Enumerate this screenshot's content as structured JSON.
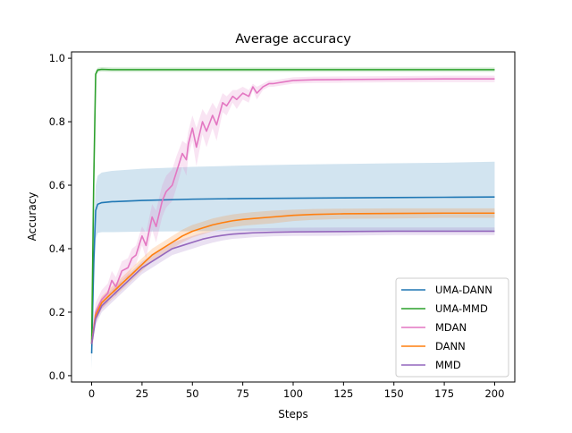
{
  "chart_data": {
    "type": "line",
    "title": "Average accuracy",
    "xlabel": "Steps",
    "ylabel": "Accuracy",
    "xlim": [
      -10,
      210
    ],
    "ylim": [
      -0.02,
      1.02
    ],
    "xticks": [
      0,
      25,
      50,
      75,
      100,
      125,
      150,
      175,
      200
    ],
    "yticks": [
      0.0,
      0.2,
      0.4,
      0.6,
      0.8,
      1.0
    ],
    "xtick_labels": [
      "0",
      "25",
      "50",
      "75",
      "100",
      "125",
      "150",
      "175",
      "200"
    ],
    "ytick_labels": [
      "0.0",
      "0.2",
      "0.4",
      "0.6",
      "0.8",
      "1.0"
    ],
    "grid": false,
    "legend_position": "bottom-right",
    "legend": [
      "UMA-DANN",
      "UMA-MMD",
      "MDAN",
      "DANN",
      "MMD"
    ],
    "series": [
      {
        "name": "UMA-DANN",
        "color": "#1f77b4",
        "x": [
          0,
          1,
          2,
          3,
          5,
          10,
          25,
          50,
          75,
          100,
          125,
          150,
          175,
          200
        ],
        "y": [
          0.07,
          0.35,
          0.52,
          0.54,
          0.545,
          0.548,
          0.552,
          0.556,
          0.558,
          0.559,
          0.56,
          0.561,
          0.562,
          0.563
        ],
        "upper": [
          0.12,
          0.45,
          0.6,
          0.63,
          0.64,
          0.645,
          0.652,
          0.658,
          0.662,
          0.665,
          0.667,
          0.669,
          0.671,
          0.674
        ],
        "lower": [
          0.02,
          0.25,
          0.43,
          0.45,
          0.452,
          0.452,
          0.454,
          0.455,
          0.456,
          0.456,
          0.455,
          0.455,
          0.455,
          0.453
        ]
      },
      {
        "name": "UMA-MMD",
        "color": "#2ca02c",
        "x": [
          0,
          1,
          2,
          3,
          5,
          10,
          50,
          100,
          150,
          200
        ],
        "y": [
          0.1,
          0.6,
          0.95,
          0.963,
          0.965,
          0.964,
          0.964,
          0.964,
          0.964,
          0.964
        ],
        "upper": [
          0.12,
          0.62,
          0.96,
          0.97,
          0.972,
          0.971,
          0.971,
          0.971,
          0.971,
          0.971
        ],
        "lower": [
          0.08,
          0.58,
          0.94,
          0.956,
          0.958,
          0.957,
          0.957,
          0.957,
          0.957,
          0.957
        ]
      },
      {
        "name": "MDAN",
        "color": "#e377c2",
        "x": [
          0,
          2,
          5,
          8,
          10,
          12,
          15,
          18,
          20,
          22,
          25,
          27,
          30,
          32,
          35,
          37,
          40,
          42,
          45,
          47,
          48,
          50,
          52,
          55,
          57,
          60,
          62,
          65,
          67,
          70,
          72,
          75,
          78,
          80,
          82,
          85,
          88,
          90,
          95,
          100,
          110,
          125,
          150,
          175,
          200
        ],
        "y": [
          0.1,
          0.2,
          0.24,
          0.26,
          0.3,
          0.28,
          0.33,
          0.34,
          0.37,
          0.38,
          0.44,
          0.41,
          0.5,
          0.47,
          0.55,
          0.58,
          0.6,
          0.64,
          0.7,
          0.68,
          0.73,
          0.78,
          0.72,
          0.8,
          0.77,
          0.82,
          0.79,
          0.86,
          0.85,
          0.88,
          0.87,
          0.89,
          0.88,
          0.91,
          0.89,
          0.91,
          0.92,
          0.92,
          0.925,
          0.93,
          0.932,
          0.933,
          0.934,
          0.935,
          0.935
        ],
        "upper": [
          0.13,
          0.23,
          0.27,
          0.29,
          0.33,
          0.31,
          0.36,
          0.37,
          0.4,
          0.41,
          0.47,
          0.45,
          0.54,
          0.52,
          0.6,
          0.63,
          0.65,
          0.69,
          0.74,
          0.73,
          0.77,
          0.82,
          0.78,
          0.84,
          0.82,
          0.86,
          0.84,
          0.89,
          0.88,
          0.9,
          0.9,
          0.91,
          0.9,
          0.92,
          0.91,
          0.92,
          0.93,
          0.93,
          0.935,
          0.94,
          0.942,
          0.943,
          0.944,
          0.945,
          0.945
        ],
        "lower": [
          0.07,
          0.17,
          0.21,
          0.23,
          0.27,
          0.25,
          0.3,
          0.31,
          0.34,
          0.35,
          0.41,
          0.37,
          0.46,
          0.42,
          0.5,
          0.53,
          0.55,
          0.59,
          0.66,
          0.63,
          0.69,
          0.74,
          0.66,
          0.76,
          0.72,
          0.78,
          0.74,
          0.83,
          0.82,
          0.86,
          0.84,
          0.87,
          0.86,
          0.9,
          0.87,
          0.9,
          0.91,
          0.91,
          0.915,
          0.92,
          0.922,
          0.923,
          0.924,
          0.925,
          0.925
        ]
      },
      {
        "name": "DANN",
        "color": "#ff7f0e",
        "x": [
          0,
          2,
          5,
          10,
          15,
          20,
          25,
          30,
          35,
          40,
          45,
          50,
          55,
          60,
          65,
          70,
          75,
          80,
          90,
          100,
          110,
          125,
          150,
          175,
          200
        ],
        "y": [
          0.1,
          0.19,
          0.23,
          0.26,
          0.29,
          0.32,
          0.35,
          0.38,
          0.4,
          0.42,
          0.44,
          0.455,
          0.465,
          0.475,
          0.482,
          0.488,
          0.492,
          0.495,
          0.5,
          0.505,
          0.508,
          0.51,
          0.511,
          0.512,
          0.512
        ],
        "upper": [
          0.12,
          0.21,
          0.25,
          0.28,
          0.31,
          0.34,
          0.37,
          0.4,
          0.42,
          0.44,
          0.46,
          0.475,
          0.485,
          0.495,
          0.502,
          0.508,
          0.512,
          0.515,
          0.52,
          0.523,
          0.525,
          0.526,
          0.527,
          0.527,
          0.527
        ],
        "lower": [
          0.08,
          0.17,
          0.21,
          0.24,
          0.27,
          0.3,
          0.33,
          0.36,
          0.38,
          0.4,
          0.42,
          0.435,
          0.445,
          0.455,
          0.462,
          0.468,
          0.472,
          0.475,
          0.48,
          0.487,
          0.491,
          0.494,
          0.495,
          0.497,
          0.497
        ]
      },
      {
        "name": "MMD",
        "color": "#9467bd",
        "x": [
          0,
          2,
          5,
          10,
          15,
          20,
          25,
          30,
          35,
          40,
          45,
          50,
          55,
          60,
          65,
          70,
          75,
          80,
          90,
          100,
          125,
          150,
          175,
          200
        ],
        "y": [
          0.1,
          0.18,
          0.22,
          0.25,
          0.28,
          0.31,
          0.34,
          0.36,
          0.38,
          0.4,
          0.41,
          0.42,
          0.43,
          0.437,
          0.442,
          0.446,
          0.448,
          0.45,
          0.452,
          0.453,
          0.454,
          0.455,
          0.455,
          0.455
        ],
        "upper": [
          0.12,
          0.2,
          0.24,
          0.27,
          0.3,
          0.33,
          0.36,
          0.38,
          0.4,
          0.42,
          0.43,
          0.44,
          0.45,
          0.455,
          0.458,
          0.461,
          0.463,
          0.464,
          0.465,
          0.466,
          0.467,
          0.467,
          0.467,
          0.467
        ],
        "lower": [
          0.08,
          0.16,
          0.2,
          0.23,
          0.26,
          0.29,
          0.32,
          0.34,
          0.36,
          0.38,
          0.39,
          0.4,
          0.41,
          0.419,
          0.426,
          0.431,
          0.433,
          0.436,
          0.439,
          0.44,
          0.441,
          0.443,
          0.443,
          0.443
        ]
      }
    ]
  }
}
